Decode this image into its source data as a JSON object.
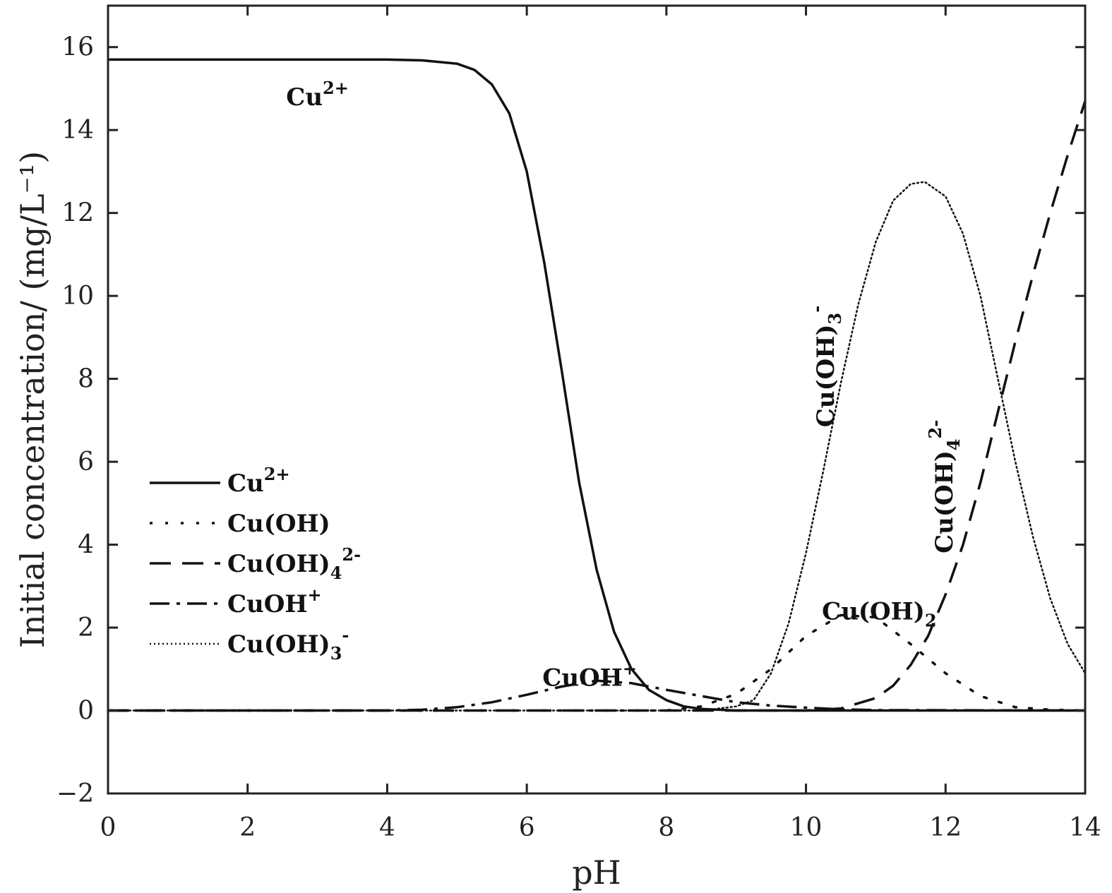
{
  "chart_data": {
    "type": "line",
    "xlabel": "pH",
    "ylabel": "Initial concentration/ (mg/L⁻¹)",
    "xlim": [
      0,
      14
    ],
    "ylim": [
      -2,
      17
    ],
    "x_ticks": [
      0,
      2,
      4,
      6,
      8,
      10,
      12,
      14
    ],
    "y_ticks": [
      -2,
      0,
      2,
      4,
      6,
      8,
      10,
      12,
      14,
      16
    ],
    "x_tick_labels": [
      "0",
      "2",
      "4",
      "6",
      "8",
      "10",
      "12",
      "14"
    ],
    "y_tick_labels": [
      "−2",
      "0",
      "2",
      "4",
      "6",
      "8",
      "10",
      "12",
      "14",
      "16"
    ],
    "grid": false,
    "legend_position": "middle-left",
    "legend": [
      {
        "base": "Cu",
        "sub": "",
        "sup": "2+",
        "style": "solid"
      },
      {
        "base": "Cu(OH)",
        "sub": "",
        "sup": "",
        "style": "sparse-dot"
      },
      {
        "base": "Cu(OH)",
        "sub": "4",
        "sup": "2-",
        "style": "dash"
      },
      {
        "base": "CuOH",
        "sub": "",
        "sup": "+",
        "style": "dashdot"
      },
      {
        "base": "Cu(OH)",
        "sub": "3",
        "sup": "-",
        "style": "dense-dot"
      }
    ],
    "annotations": [
      {
        "id": "cu2",
        "base": "Cu",
        "sub": "",
        "sup": "2+",
        "x": 3.0,
        "y": 14.6,
        "rotate": 0
      },
      {
        "id": "cuoh",
        "base": "CuOH",
        "sub": "",
        "sup": "+",
        "x": 6.9,
        "y": 0.6,
        "rotate": 0
      },
      {
        "id": "cuoh2",
        "base": "Cu(OH)",
        "sub": "2",
        "sup": "",
        "x": 11.05,
        "y": 2.2,
        "rotate": 0
      },
      {
        "id": "cuoh3",
        "base": "Cu(OH)",
        "sub": "3",
        "sup": "-",
        "x": 10.4,
        "y": 8.3,
        "rotate": -90
      },
      {
        "id": "cuoh4",
        "base": "Cu(OH)",
        "sub": "4",
        "sup": "2-",
        "x": 12.1,
        "y": 5.4,
        "rotate": -90
      }
    ],
    "series": [
      {
        "name": "Cu2+",
        "style": "solid",
        "x": [
          0,
          1,
          2,
          3,
          4,
          4.5,
          5,
          5.25,
          5.5,
          5.75,
          6,
          6.25,
          6.5,
          6.75,
          7,
          7.25,
          7.5,
          7.75,
          8,
          8.25,
          8.5,
          8.75,
          9,
          10,
          12,
          14
        ],
        "y": [
          15.7,
          15.7,
          15.7,
          15.7,
          15.7,
          15.68,
          15.6,
          15.45,
          15.1,
          14.4,
          13.0,
          10.8,
          8.2,
          5.5,
          3.4,
          1.9,
          1.0,
          0.5,
          0.25,
          0.1,
          0.04,
          0.02,
          0.0,
          0.0,
          0.0,
          0.0
        ]
      },
      {
        "name": "CuOH+",
        "style": "dashdot",
        "x": [
          0,
          4,
          4.5,
          5,
          5.5,
          6,
          6.5,
          7,
          7.5,
          8,
          8.5,
          9,
          9.5,
          10,
          10.5,
          11,
          14
        ],
        "y": [
          0,
          0,
          0.02,
          0.08,
          0.2,
          0.38,
          0.58,
          0.72,
          0.66,
          0.5,
          0.35,
          0.2,
          0.12,
          0.07,
          0.03,
          0.01,
          0
        ]
      },
      {
        "name": "Cu(OH)2",
        "style": "sparse-dot",
        "x": [
          0,
          8,
          8.5,
          9,
          9.5,
          10,
          10.5,
          11,
          11.5,
          12,
          12.5,
          13,
          13.5,
          14
        ],
        "y": [
          0,
          0,
          0.1,
          0.4,
          1.0,
          1.8,
          2.3,
          2.25,
          1.6,
          0.9,
          0.35,
          0.08,
          0.02,
          0
        ]
      },
      {
        "name": "Cu(OH)3-",
        "style": "dense-dot",
        "x": [
          0,
          8.5,
          9,
          9.25,
          9.5,
          9.75,
          10,
          10.25,
          10.5,
          10.75,
          11,
          11.25,
          11.5,
          11.7,
          12,
          12.25,
          12.5,
          12.75,
          13,
          13.25,
          13.5,
          13.75,
          14
        ],
        "y": [
          0,
          0,
          0.1,
          0.25,
          0.9,
          2.1,
          3.8,
          5.8,
          7.9,
          9.8,
          11.3,
          12.3,
          12.7,
          12.75,
          12.4,
          11.5,
          10.0,
          8.0,
          6.0,
          4.2,
          2.7,
          1.6,
          0.9
        ]
      },
      {
        "name": "Cu(OH)4 2-",
        "style": "dash",
        "x": [
          0,
          10,
          10.5,
          11,
          11.25,
          11.5,
          11.75,
          12,
          12.25,
          12.5,
          12.75,
          13,
          13.25,
          13.5,
          13.75,
          14
        ],
        "y": [
          0,
          0,
          0.05,
          0.3,
          0.6,
          1.1,
          1.8,
          2.8,
          4.0,
          5.5,
          7.2,
          8.9,
          10.5,
          12.0,
          13.4,
          14.7
        ]
      }
    ]
  }
}
